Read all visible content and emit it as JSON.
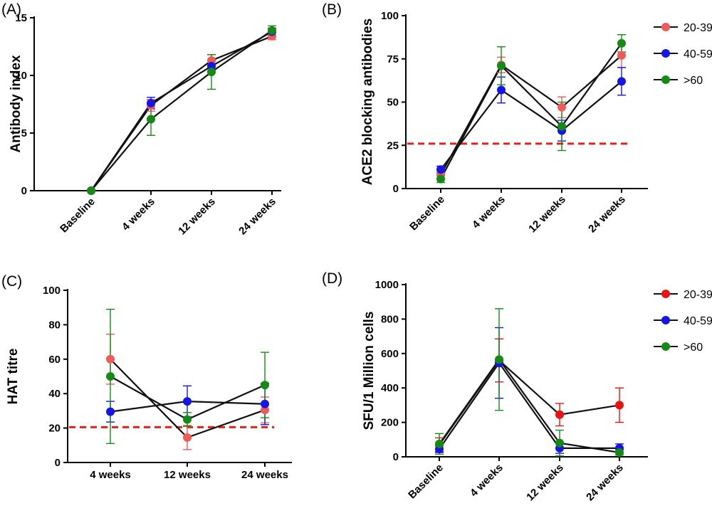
{
  "colors": {
    "s20_39_light": "#f05a5a",
    "s20_39_bright": "#ee1111",
    "s40_59": "#1515e8",
    "s60": "#168a16",
    "line": "#111111",
    "threshold": "#e8201a"
  },
  "chart_data": [
    {
      "panel": "(A)",
      "type": "line",
      "ylabel": "Antibody index",
      "ylim": [
        0,
        15
      ],
      "yticks": [
        "0",
        "5",
        "10",
        "15"
      ],
      "categories": [
        "Baseline",
        "4 weeks",
        "12 weeks",
        "24 weeks"
      ],
      "legend": false,
      "series": [
        {
          "name": "20-39",
          "values": [
            0,
            7.4,
            11.3,
            13.4
          ],
          "err": [
            0,
            0.5,
            0.5,
            0.3
          ]
        },
        {
          "name": "40-59",
          "values": [
            0,
            7.6,
            10.8,
            13.8
          ],
          "err": [
            0,
            0.5,
            0.5,
            0.3
          ]
        },
        {
          "name": ">60",
          "values": [
            0,
            6.2,
            10.3,
            13.9
          ],
          "err": [
            0,
            1.4,
            1.5,
            0.4
          ]
        }
      ]
    },
    {
      "panel": "(B)",
      "type": "line",
      "ylabel": "ACE2 blocking antibodies",
      "ylim": [
        0,
        100
      ],
      "yticks": [
        "0",
        "25",
        "50",
        "75",
        "100"
      ],
      "categories": [
        "Baseline",
        "4 weeks",
        "12 weeks",
        "24 weeks"
      ],
      "threshold": 26,
      "legend": true,
      "series": [
        {
          "name": "20-39",
          "values": [
            8,
            71.5,
            47,
            77
          ],
          "err": [
            2,
            4.5,
            6,
            7
          ]
        },
        {
          "name": "40-59",
          "values": [
            11,
            57,
            33.5,
            62
          ],
          "err": [
            2,
            7.5,
            6,
            8
          ]
        },
        {
          "name": ">60",
          "values": [
            5.5,
            71,
            36,
            84
          ],
          "err": [
            2,
            11,
            14,
            5
          ]
        }
      ]
    },
    {
      "panel": "(C)",
      "type": "line",
      "ylabel": "HAT titre",
      "ylim": [
        0,
        100
      ],
      "yticks": [
        "0",
        "20",
        "40",
        "60",
        "80",
        "100"
      ],
      "categories": [
        "4 weeks",
        "12 weeks",
        "24 weeks"
      ],
      "threshold": 20.5,
      "legend": false,
      "series": [
        {
          "name": "20-39",
          "values": [
            60,
            14.5,
            30.5
          ],
          "err": [
            14.5,
            7,
            7.5
          ]
        },
        {
          "name": "40-59",
          "values": [
            29.5,
            35.5,
            34
          ],
          "err": [
            6,
            9,
            12
          ]
        },
        {
          "name": ">60",
          "values": [
            50,
            25,
            45
          ],
          "err": [
            39,
            4,
            19
          ]
        }
      ]
    },
    {
      "panel": "(D)",
      "type": "line",
      "ylabel": "SFU/1 Million cells",
      "ylim": [
        0,
        1000
      ],
      "yticks": [
        "0",
        "200",
        "400",
        "600",
        "800",
        "1000"
      ],
      "categories": [
        "Baseline",
        "4 weeks",
        "12 weeks",
        "24 weeks"
      ],
      "legend": true,
      "series": [
        {
          "name": "20-39",
          "values": [
            70,
            560,
            245,
            300
          ],
          "err": [
            40,
            125,
            65,
            100
          ]
        },
        {
          "name": "40-59",
          "values": [
            45,
            545,
            50,
            50
          ],
          "err": [
            20,
            205,
            30,
            25
          ]
        },
        {
          "name": ">60",
          "values": [
            75,
            565,
            80,
            25
          ],
          "err": [
            60,
            295,
            75,
            15
          ]
        }
      ]
    }
  ]
}
